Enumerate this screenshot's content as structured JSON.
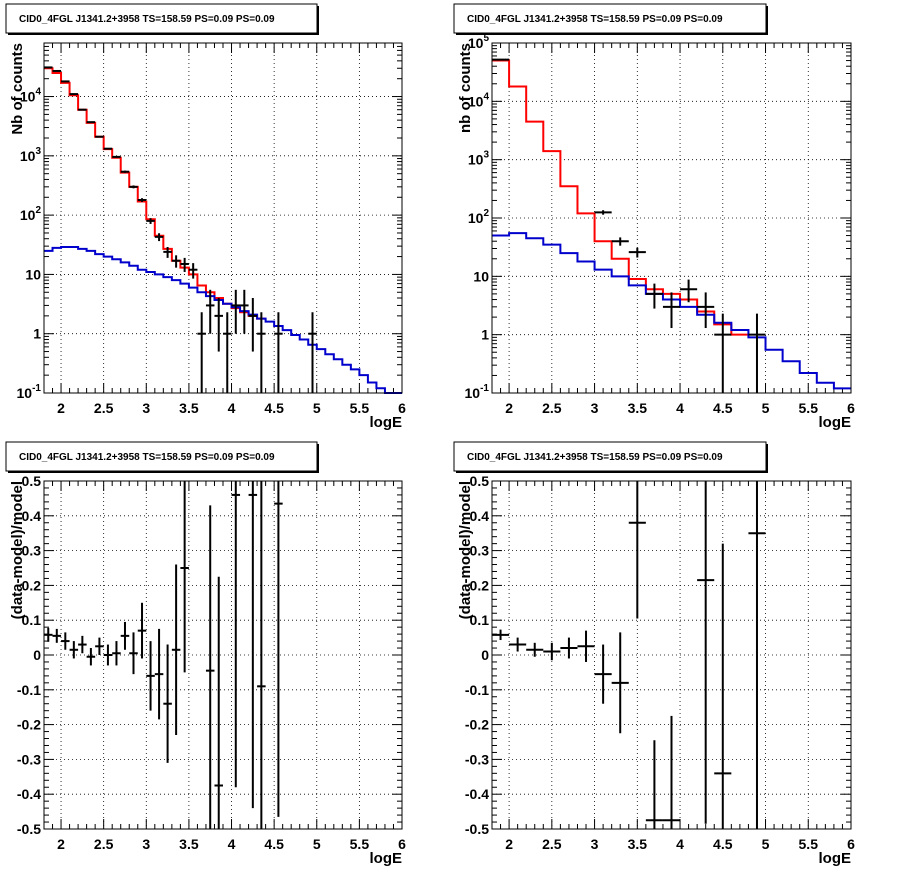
{
  "chart_data": [
    {
      "type": "histogram",
      "title": "CID0_4FGL J1341.2+3958 TS=158.59 PS=0.09 PS=0.09",
      "xlabel": "logE",
      "ylabel": "Nb of counts",
      "xlim": [
        1.8,
        6.0
      ],
      "ylim": [
        0.1,
        80000
      ],
      "yscale": "log",
      "grid": true,
      "x_ticks": [
        "2",
        "2.5",
        "3",
        "3.5",
        "4",
        "4.5",
        "5",
        "5.5",
        "6"
      ],
      "y_ticks": [
        "10^{-1}",
        "1",
        "10",
        "10^{2}",
        "10^{3}",
        "10^{4}"
      ],
      "bin_edges": [
        1.8,
        1.9,
        2.0,
        2.1,
        2.2,
        2.3,
        2.4,
        2.5,
        2.6,
        2.7,
        2.8,
        2.9,
        3.0,
        3.1,
        3.2,
        3.3,
        3.4,
        3.5,
        3.6,
        3.7,
        3.8,
        3.9,
        4.0,
        4.1,
        4.2,
        4.3,
        4.4,
        4.5,
        4.6,
        4.7,
        4.8,
        4.9,
        5.0,
        5.1,
        5.2,
        5.3,
        5.4,
        5.5,
        5.6,
        5.7,
        5.8,
        5.9,
        6.0
      ],
      "series": [
        {
          "color": "#ff0000",
          "values": [
            30000,
            25000,
            17000,
            10500,
            6000,
            3600,
            2100,
            1300,
            930,
            520,
            300,
            170,
            85,
            45,
            27,
            17,
            13,
            10,
            6.5,
            5.0,
            4.0,
            3.2,
            2.7,
            2.3,
            2.0,
            1.8
          ]
        },
        {
          "color": "#0000cc",
          "values": [
            25,
            28,
            29,
            29,
            27,
            25,
            22,
            20,
            18,
            16,
            14,
            12,
            11,
            10,
            9,
            8,
            7,
            6,
            5,
            4.3,
            3.7,
            3.2,
            2.8,
            2.4,
            2.1,
            1.8,
            1.6,
            1.35,
            1.15,
            0.95,
            0.8,
            0.65,
            0.55,
            0.45,
            0.37,
            0.3,
            0.25,
            0.2,
            0.15,
            0.12,
            0.1,
            0.1
          ]
        }
      ],
      "points": [
        {
          "x": 1.85,
          "y": 31000,
          "yerr": [
            176,
            176
          ]
        },
        {
          "x": 1.95,
          "y": 27000,
          "yerr": [
            164,
            164
          ]
        },
        {
          "x": 2.05,
          "y": 18000,
          "yerr": [
            134,
            134
          ]
        },
        {
          "x": 2.15,
          "y": 11000,
          "yerr": [
            105,
            105
          ]
        },
        {
          "x": 2.25,
          "y": 6000,
          "yerr": [
            77,
            77
          ]
        },
        {
          "x": 2.35,
          "y": 3700,
          "yerr": [
            61,
            61
          ]
        },
        {
          "x": 2.45,
          "y": 2100,
          "yerr": [
            46,
            46
          ]
        },
        {
          "x": 2.55,
          "y": 1320,
          "yerr": [
            36,
            36
          ]
        },
        {
          "x": 2.65,
          "y": 960,
          "yerr": [
            31,
            31
          ]
        },
        {
          "x": 2.75,
          "y": 540,
          "yerr": [
            23,
            23
          ]
        },
        {
          "x": 2.85,
          "y": 300,
          "yerr": [
            17,
            17
          ]
        },
        {
          "x": 2.95,
          "y": 180,
          "yerr": [
            13,
            13
          ]
        },
        {
          "x": 3.05,
          "y": 80,
          "yerr": [
            9,
            9
          ]
        },
        {
          "x": 3.15,
          "y": 43,
          "yerr": [
            6.5,
            6.5
          ]
        },
        {
          "x": 3.25,
          "y": 24,
          "yerr": [
            5,
            5
          ]
        },
        {
          "x": 3.35,
          "y": 17,
          "yerr": [
            4,
            4
          ]
        },
        {
          "x": 3.45,
          "y": 15,
          "yerr": [
            4,
            4
          ]
        },
        {
          "x": 3.55,
          "y": 12,
          "yerr": [
            3.5,
            3.5
          ]
        },
        {
          "x": 3.65,
          "y": 1,
          "yerr": [
            0.9,
            1.3
          ]
        },
        {
          "x": 3.75,
          "y": 3,
          "yerr": [
            2,
            2.5
          ]
        },
        {
          "x": 3.85,
          "y": 2,
          "yerr": [
            1.5,
            2
          ]
        },
        {
          "x": 3.95,
          "y": 1,
          "yerr": [
            0.9,
            1.3
          ]
        },
        {
          "x": 4.05,
          "y": 3,
          "yerr": [
            2,
            2.5
          ]
        },
        {
          "x": 4.15,
          "y": 3,
          "yerr": [
            2,
            2.5
          ]
        },
        {
          "x": 4.25,
          "y": 2,
          "yerr": [
            1.5,
            2
          ]
        },
        {
          "x": 4.35,
          "y": 1,
          "yerr": [
            0.9,
            1.3
          ]
        },
        {
          "x": 4.55,
          "y": 1,
          "yerr": [
            0.9,
            1.3
          ]
        },
        {
          "x": 4.95,
          "y": 1,
          "yerr": [
            0.9,
            1.3
          ]
        }
      ]
    },
    {
      "type": "histogram",
      "title": "CID0_4FGL J1341.2+3958 TS=158.59 PS=0.09 PS=0.09",
      "xlabel": "logE",
      "ylabel": "nb of counts",
      "xlim": [
        1.8,
        6.0
      ],
      "ylim": [
        0.1,
        100000
      ],
      "yscale": "log",
      "grid": true,
      "x_ticks": [
        "2",
        "2.5",
        "3",
        "3.5",
        "4",
        "4.5",
        "5",
        "5.5",
        "6"
      ],
      "y_ticks": [
        "10^{-1}",
        "1",
        "10",
        "10^{2}",
        "10^{3}",
        "10^{4}",
        "10^{5}"
      ],
      "bin_edges": [
        1.8,
        2.0,
        2.2,
        2.4,
        2.6,
        2.8,
        3.0,
        3.2,
        3.4,
        3.6,
        3.8,
        4.0,
        4.2,
        4.4,
        4.6,
        4.8,
        5.0,
        5.2,
        5.4,
        5.6,
        5.8,
        6.0
      ],
      "series": [
        {
          "color": "#ff0000",
          "values": [
            50000,
            18000,
            4500,
            1400,
            350,
            120,
            40,
            20,
            9,
            6,
            5,
            4,
            2.5,
            1.5,
            1
          ]
        },
        {
          "color": "#0000cc",
          "values": [
            50,
            55,
            45,
            35,
            25,
            18,
            13,
            10,
            7,
            5,
            4,
            3,
            2.2,
            1.6,
            1.2,
            0.9,
            0.55,
            0.35,
            0.22,
            0.15,
            0.12
          ]
        }
      ],
      "points": [
        {
          "x": 1.9,
          "y": 52000,
          "yerr": [
            230,
            230
          ]
        },
        {
          "x": 3.1,
          "y": 125,
          "yerr": [
            11,
            11
          ]
        },
        {
          "x": 3.3,
          "y": 40,
          "yerr": [
            6.5,
            6.5
          ]
        },
        {
          "x": 3.5,
          "y": 26,
          "yerr": [
            5,
            5
          ]
        },
        {
          "x": 3.7,
          "y": 5,
          "yerr": [
            2.2,
            2.5
          ]
        },
        {
          "x": 3.9,
          "y": 3,
          "yerr": [
            1.7,
            2.3
          ]
        },
        {
          "x": 4.1,
          "y": 6,
          "yerr": [
            2.4,
            2.8
          ]
        },
        {
          "x": 4.3,
          "y": 3,
          "yerr": [
            1.7,
            2.3
          ]
        },
        {
          "x": 4.5,
          "y": 1,
          "yerr": [
            0.9,
            1.3
          ]
        },
        {
          "x": 4.9,
          "y": 1,
          "yerr": [
            0.9,
            1.3
          ]
        }
      ]
    },
    {
      "type": "scatter",
      "title": "CID0_4FGL J1341.2+3958 TS=158.59 PS=0.09 PS=0.09",
      "xlabel": "logE",
      "ylabel": "(data-model)/model",
      "xlim": [
        1.8,
        6.0
      ],
      "ylim": [
        -0.5,
        0.5
      ],
      "grid": true,
      "x_ticks": [
        "2",
        "2.5",
        "3",
        "3.5",
        "4",
        "4.5",
        "5",
        "5.5",
        "6"
      ],
      "y_ticks": [
        "-0.5",
        "-0.4",
        "-0.3",
        "-0.2",
        "-0.1",
        "0",
        "0.1",
        "0.2",
        "0.3",
        "0.4",
        "0.5"
      ],
      "xerr": 0.05,
      "points": [
        {
          "x": 1.85,
          "y": 0.058,
          "yerr": 0.02
        },
        {
          "x": 1.95,
          "y": 0.055,
          "yerr": 0.02
        },
        {
          "x": 2.05,
          "y": 0.04,
          "yerr": 0.025
        },
        {
          "x": 2.15,
          "y": 0.015,
          "yerr": 0.025
        },
        {
          "x": 2.25,
          "y": 0.03,
          "yerr": 0.025
        },
        {
          "x": 2.35,
          "y": -0.005,
          "yerr": 0.025
        },
        {
          "x": 2.45,
          "y": 0.025,
          "yerr": 0.025
        },
        {
          "x": 2.55,
          "y": 0.0,
          "yerr": 0.03
        },
        {
          "x": 2.65,
          "y": 0.005,
          "yerr": 0.035
        },
        {
          "x": 2.75,
          "y": 0.055,
          "yerr": 0.04
        },
        {
          "x": 2.85,
          "y": 0.005,
          "yerr": 0.06
        },
        {
          "x": 2.95,
          "y": 0.07,
          "yerr": 0.08
        },
        {
          "x": 3.05,
          "y": -0.06,
          "yerr": 0.1
        },
        {
          "x": 3.15,
          "y": -0.055,
          "yerr": 0.13
        },
        {
          "x": 3.25,
          "y": -0.14,
          "yerr": 0.17
        },
        {
          "x": 3.35,
          "y": 0.015,
          "yerr": 0.245
        },
        {
          "x": 3.45,
          "y": 0.25,
          "yerr": 0.3
        },
        {
          "x": 3.75,
          "y": -0.045,
          "yerr": 0.475
        },
        {
          "x": 3.85,
          "y": -0.375,
          "yerr": 0.6
        },
        {
          "x": 4.05,
          "y": 0.46,
          "yerr": 0.84
        },
        {
          "x": 4.25,
          "y": 0.46,
          "yerr": 0.9
        },
        {
          "x": 4.35,
          "y": -0.09,
          "yerr": 0.9
        },
        {
          "x": 4.55,
          "y": 0.435,
          "yerr": 0.9
        }
      ]
    },
    {
      "type": "scatter",
      "title": "CID0_4FGL J1341.2+3958 TS=158.59 PS=0.09 PS=0.09",
      "xlabel": "logE",
      "ylabel": "(data-model)/model",
      "xlim": [
        1.8,
        6.0
      ],
      "ylim": [
        -0.5,
        0.5
      ],
      "grid": true,
      "x_ticks": [
        "2",
        "2.5",
        "3",
        "3.5",
        "4",
        "4.5",
        "5",
        "5.5",
        "6"
      ],
      "y_ticks": [
        "-0.5",
        "-0.4",
        "-0.3",
        "-0.2",
        "-0.1",
        "0",
        "0.1",
        "0.2",
        "0.3",
        "0.4",
        "0.5"
      ],
      "xerr": 0.1,
      "points": [
        {
          "x": 1.9,
          "y": 0.058,
          "yerr": 0.015
        },
        {
          "x": 2.1,
          "y": 0.03,
          "yerr": 0.02
        },
        {
          "x": 2.3,
          "y": 0.015,
          "yerr": 0.02
        },
        {
          "x": 2.5,
          "y": 0.01,
          "yerr": 0.025
        },
        {
          "x": 2.7,
          "y": 0.02,
          "yerr": 0.03
        },
        {
          "x": 2.9,
          "y": 0.025,
          "yerr": 0.045
        },
        {
          "x": 3.1,
          "y": -0.055,
          "yerr": 0.085
        },
        {
          "x": 3.3,
          "y": -0.08,
          "yerr": 0.145
        },
        {
          "x": 3.5,
          "y": 0.38,
          "yerr": 0.275
        },
        {
          "x": 3.7,
          "y": -0.475,
          "yerr": 0.23
        },
        {
          "x": 3.9,
          "y": -0.475,
          "yerr": 0.3
        },
        {
          "x": 4.3,
          "y": 0.215,
          "yerr": 0.7
        },
        {
          "x": 4.5,
          "y": -0.34,
          "yerr": 0.66
        },
        {
          "x": 4.9,
          "y": 0.35,
          "yerr": 0.9
        }
      ]
    }
  ]
}
